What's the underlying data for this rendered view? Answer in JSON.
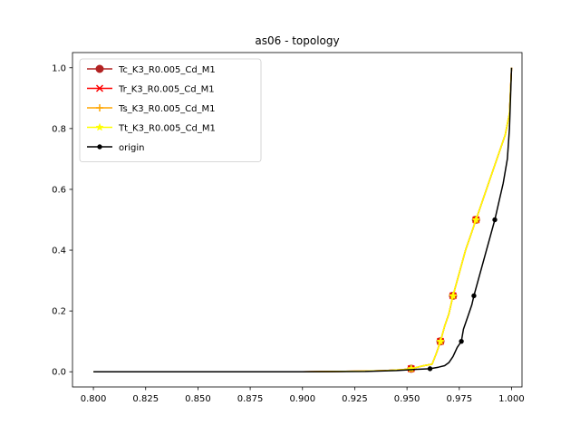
{
  "chart_data": {
    "type": "line",
    "title": "as06 - topology",
    "xlabel": "",
    "ylabel": "",
    "xlim": [
      0.79,
      1.005
    ],
    "ylim": [
      -0.05,
      1.05
    ],
    "xticks": [
      0.8,
      0.825,
      0.85,
      0.875,
      0.9,
      0.925,
      0.95,
      0.975,
      1.0
    ],
    "xtick_labels": [
      "0.800",
      "0.825",
      "0.850",
      "0.875",
      "0.900",
      "0.925",
      "0.950",
      "0.975",
      "1.000"
    ],
    "yticks": [
      0.0,
      0.2,
      0.4,
      0.6,
      0.8,
      1.0
    ],
    "ytick_labels": [
      "0.0",
      "0.2",
      "0.4",
      "0.6",
      "0.8",
      "1.0"
    ],
    "grid": false,
    "legend_position": "top-left",
    "series": [
      {
        "name": "Tc_K3_R0.005_Cd_M1",
        "color": "#b22222",
        "marker": "circle",
        "x": [
          0.8,
          0.9,
          0.93,
          0.94,
          0.948,
          0.952,
          0.955,
          0.958,
          0.962,
          0.964,
          0.966,
          0.968,
          0.97,
          0.972,
          0.974,
          0.976,
          0.978,
          0.98,
          0.983,
          0.986,
          0.99,
          0.994,
          0.997,
          0.999,
          1.0
        ],
        "y": [
          0.0,
          0.0,
          0.002,
          0.004,
          0.007,
          0.01,
          0.015,
          0.02,
          0.025,
          0.06,
          0.1,
          0.15,
          0.19,
          0.25,
          0.3,
          0.35,
          0.4,
          0.44,
          0.5,
          0.56,
          0.64,
          0.72,
          0.78,
          0.85,
          1.0
        ],
        "marker_x": [
          0.952,
          0.966,
          0.972,
          0.983
        ],
        "marker_y": [
          0.01,
          0.1,
          0.25,
          0.5
        ]
      },
      {
        "name": "Tr_K3_R0.005_Cd_M1",
        "color": "#ff0000",
        "marker": "x",
        "x": [
          0.8,
          0.9,
          0.93,
          0.94,
          0.948,
          0.952,
          0.955,
          0.958,
          0.962,
          0.964,
          0.966,
          0.968,
          0.97,
          0.972,
          0.974,
          0.976,
          0.978,
          0.98,
          0.983,
          0.986,
          0.99,
          0.994,
          0.997,
          0.999,
          1.0
        ],
        "y": [
          0.0,
          0.0,
          0.002,
          0.004,
          0.007,
          0.01,
          0.015,
          0.02,
          0.025,
          0.06,
          0.1,
          0.15,
          0.19,
          0.25,
          0.3,
          0.35,
          0.4,
          0.44,
          0.5,
          0.56,
          0.64,
          0.72,
          0.78,
          0.85,
          1.0
        ],
        "marker_x": [
          0.952,
          0.966,
          0.972,
          0.983
        ],
        "marker_y": [
          0.01,
          0.1,
          0.25,
          0.5
        ]
      },
      {
        "name": "Ts_K3_R0.005_Cd_M1",
        "color": "#ffa500",
        "marker": "plus",
        "x": [
          0.8,
          0.9,
          0.93,
          0.94,
          0.948,
          0.952,
          0.955,
          0.958,
          0.962,
          0.964,
          0.966,
          0.968,
          0.97,
          0.972,
          0.974,
          0.976,
          0.978,
          0.98,
          0.983,
          0.986,
          0.99,
          0.994,
          0.997,
          0.999,
          1.0
        ],
        "y": [
          0.0,
          0.0,
          0.002,
          0.004,
          0.007,
          0.01,
          0.015,
          0.02,
          0.025,
          0.06,
          0.1,
          0.15,
          0.19,
          0.25,
          0.3,
          0.35,
          0.4,
          0.44,
          0.5,
          0.56,
          0.64,
          0.72,
          0.78,
          0.85,
          1.0
        ],
        "marker_x": [
          0.952,
          0.966,
          0.972,
          0.983
        ],
        "marker_y": [
          0.01,
          0.1,
          0.25,
          0.5
        ]
      },
      {
        "name": "Tt_K3_R0.005_Cd_M1",
        "color": "#ffff00",
        "marker": "star",
        "x": [
          0.8,
          0.9,
          0.93,
          0.94,
          0.948,
          0.952,
          0.955,
          0.958,
          0.962,
          0.964,
          0.966,
          0.968,
          0.97,
          0.972,
          0.974,
          0.976,
          0.978,
          0.98,
          0.983,
          0.986,
          0.99,
          0.994,
          0.997,
          0.999,
          1.0
        ],
        "y": [
          0.0,
          0.0,
          0.002,
          0.004,
          0.007,
          0.01,
          0.015,
          0.02,
          0.025,
          0.06,
          0.1,
          0.15,
          0.19,
          0.25,
          0.3,
          0.35,
          0.4,
          0.44,
          0.5,
          0.56,
          0.64,
          0.72,
          0.78,
          0.85,
          1.0
        ],
        "marker_x": [
          0.952,
          0.966,
          0.972,
          0.983
        ],
        "marker_y": [
          0.01,
          0.1,
          0.25,
          0.5
        ]
      },
      {
        "name": "origin",
        "color": "#000000",
        "marker": "dot",
        "x": [
          0.8,
          0.9,
          0.93,
          0.945,
          0.955,
          0.961,
          0.965,
          0.968,
          0.97,
          0.972,
          0.974,
          0.976,
          0.977,
          0.979,
          0.981,
          0.982,
          0.984,
          0.986,
          0.988,
          0.99,
          0.992,
          0.994,
          0.996,
          0.998,
          0.999,
          1.0
        ],
        "y": [
          0.0,
          0.0,
          0.001,
          0.004,
          0.008,
          0.01,
          0.015,
          0.02,
          0.03,
          0.05,
          0.08,
          0.1,
          0.14,
          0.18,
          0.22,
          0.25,
          0.3,
          0.35,
          0.4,
          0.45,
          0.5,
          0.56,
          0.62,
          0.7,
          0.8,
          1.0
        ],
        "marker_x": [
          0.961,
          0.976,
          0.982,
          0.992
        ],
        "marker_y": [
          0.01,
          0.1,
          0.25,
          0.5
        ]
      }
    ]
  }
}
